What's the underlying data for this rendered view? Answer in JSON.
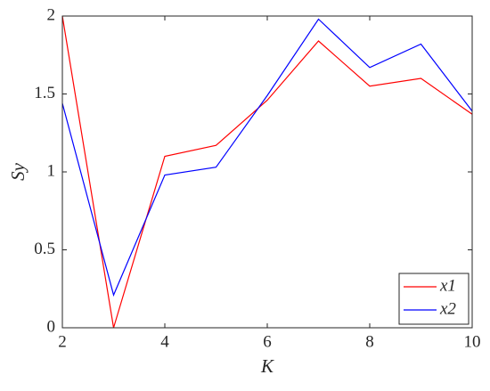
{
  "chart_data": {
    "type": "line",
    "xlabel": "K",
    "ylabel": "Sy",
    "x": [
      2,
      3,
      4,
      5,
      6,
      7,
      8,
      9,
      10
    ],
    "series": [
      {
        "name": "x1",
        "color": "#ff0000",
        "values": [
          2.0,
          0.0,
          1.1,
          1.17,
          1.46,
          1.84,
          1.55,
          1.6,
          1.37
        ]
      },
      {
        "name": "x2",
        "color": "#0000ff",
        "values": [
          1.44,
          0.21,
          0.98,
          1.03,
          1.49,
          1.98,
          1.67,
          1.82,
          1.39
        ]
      }
    ],
    "xlim": [
      2,
      10
    ],
    "xticks": [
      2,
      4,
      6,
      8,
      10
    ],
    "ylim": [
      0,
      2
    ],
    "yticks": [
      0,
      0.5,
      1,
      1.5,
      2
    ],
    "legend": "southeast"
  }
}
